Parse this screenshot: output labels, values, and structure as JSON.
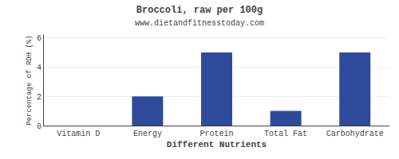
{
  "chart_data": {
    "type": "bar",
    "title": "Broccoli, raw per 100g",
    "subtitle": "www.dietandfitnesstoday.com",
    "xlabel": "Different Nutrients",
    "ylabel": "Percentage of RDH (%)",
    "categories": [
      "Vitamin D",
      "Energy",
      "Protein",
      "Total Fat",
      "Carbohydrate"
    ],
    "values": [
      0,
      2.0,
      5.0,
      1.0,
      5.0
    ],
    "color": "#2d4b9a",
    "ylim": [
      0,
      6.2
    ],
    "yticks": [
      0,
      2,
      4,
      6
    ],
    "grid": true
  }
}
